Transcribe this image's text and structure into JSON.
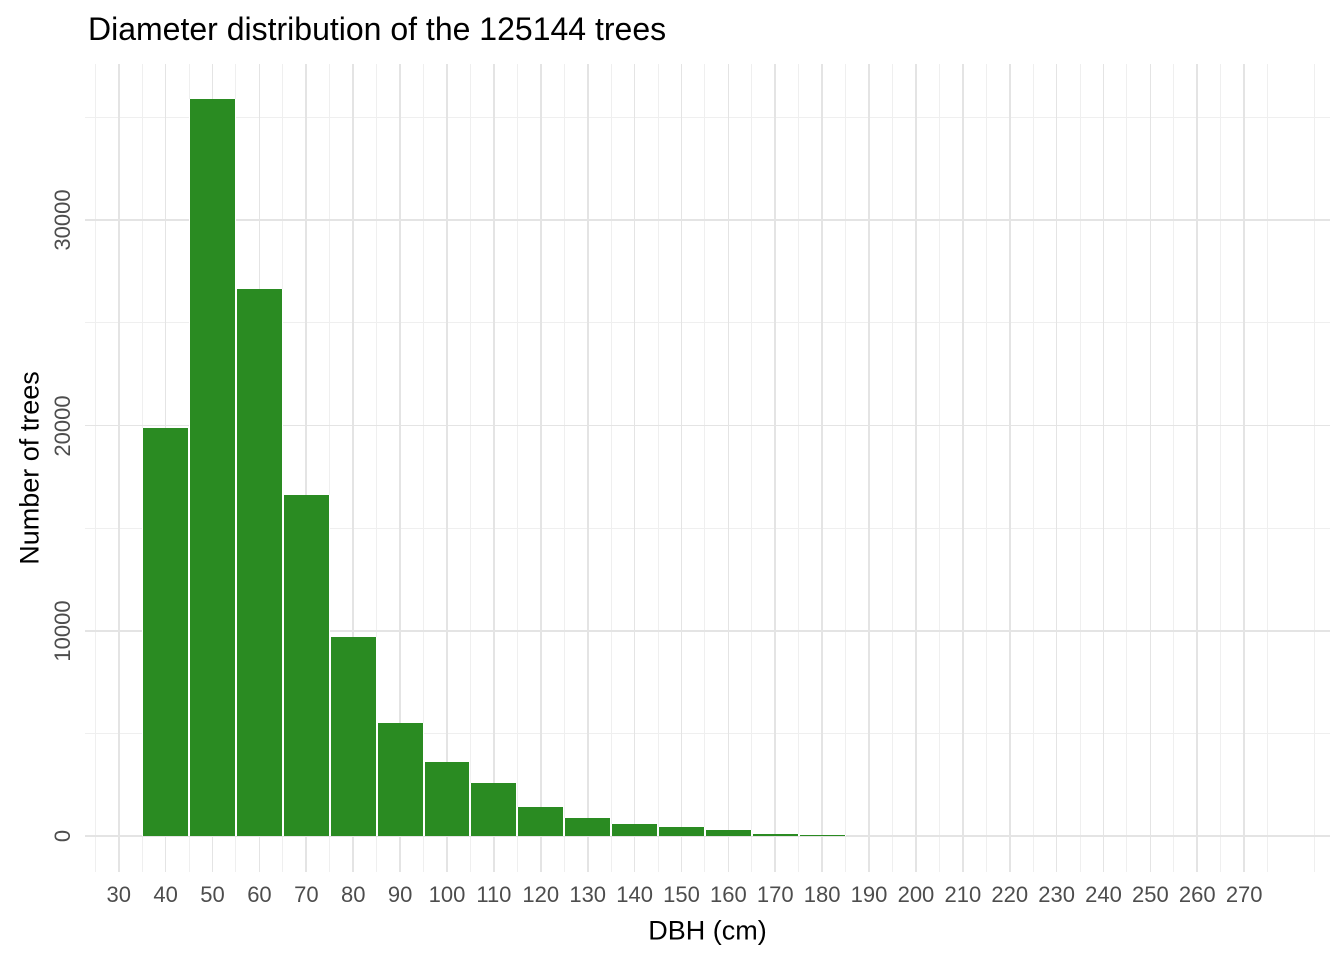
{
  "title": "Diameter distribution of the 125144 trees",
  "chart_data": {
    "type": "bar",
    "subtype": "histogram",
    "title": "Diameter distribution of the 125144 trees",
    "xlabel": "DBH (cm)",
    "ylabel": "Number of trees",
    "total_trees": 125144,
    "bin_width": 10,
    "bin_edges": [
      35,
      45,
      55,
      65,
      75,
      85,
      95,
      105,
      115,
      125,
      135,
      145,
      155,
      165,
      175,
      185
    ],
    "bin_centers": [
      40,
      50,
      60,
      70,
      80,
      90,
      100,
      110,
      120,
      130,
      140,
      150,
      160,
      170,
      180
    ],
    "values": [
      19900,
      35900,
      26650,
      16600,
      9700,
      5500,
      3600,
      2570,
      1400,
      900,
      570,
      440,
      300,
      100,
      40
    ],
    "x_ticks": [
      30,
      40,
      50,
      60,
      70,
      80,
      90,
      100,
      110,
      120,
      130,
      140,
      150,
      160,
      170,
      180,
      190,
      200,
      210,
      220,
      230,
      240,
      250,
      260,
      270
    ],
    "x_minor_ticks": [
      25,
      35,
      45,
      55,
      65,
      75,
      85,
      95,
      105,
      115,
      125,
      135,
      145,
      155,
      165,
      175,
      185,
      195,
      205,
      215,
      225,
      235,
      245,
      255,
      265,
      275,
      285
    ],
    "y_ticks": [
      0,
      10000,
      20000,
      30000
    ],
    "y_tick_labels": [
      "0",
      "10000",
      "20000",
      "30000"
    ],
    "y_minor_ticks": [
      5000,
      15000,
      25000,
      35000
    ],
    "x_range": [
      22.8,
      288.3
    ],
    "y_range": [
      -1755,
      37615
    ],
    "grid": true,
    "legend": "none",
    "colors": {
      "bar_fill": "#2a8b22",
      "bar_outline": "#ffffff",
      "grid_major": "#e4e4e4",
      "grid_minor": "#efefef",
      "tick_text": "#4d4d4d",
      "title_text": "#000000",
      "axis_title_text": "#000000",
      "background": "#ffffff"
    }
  }
}
